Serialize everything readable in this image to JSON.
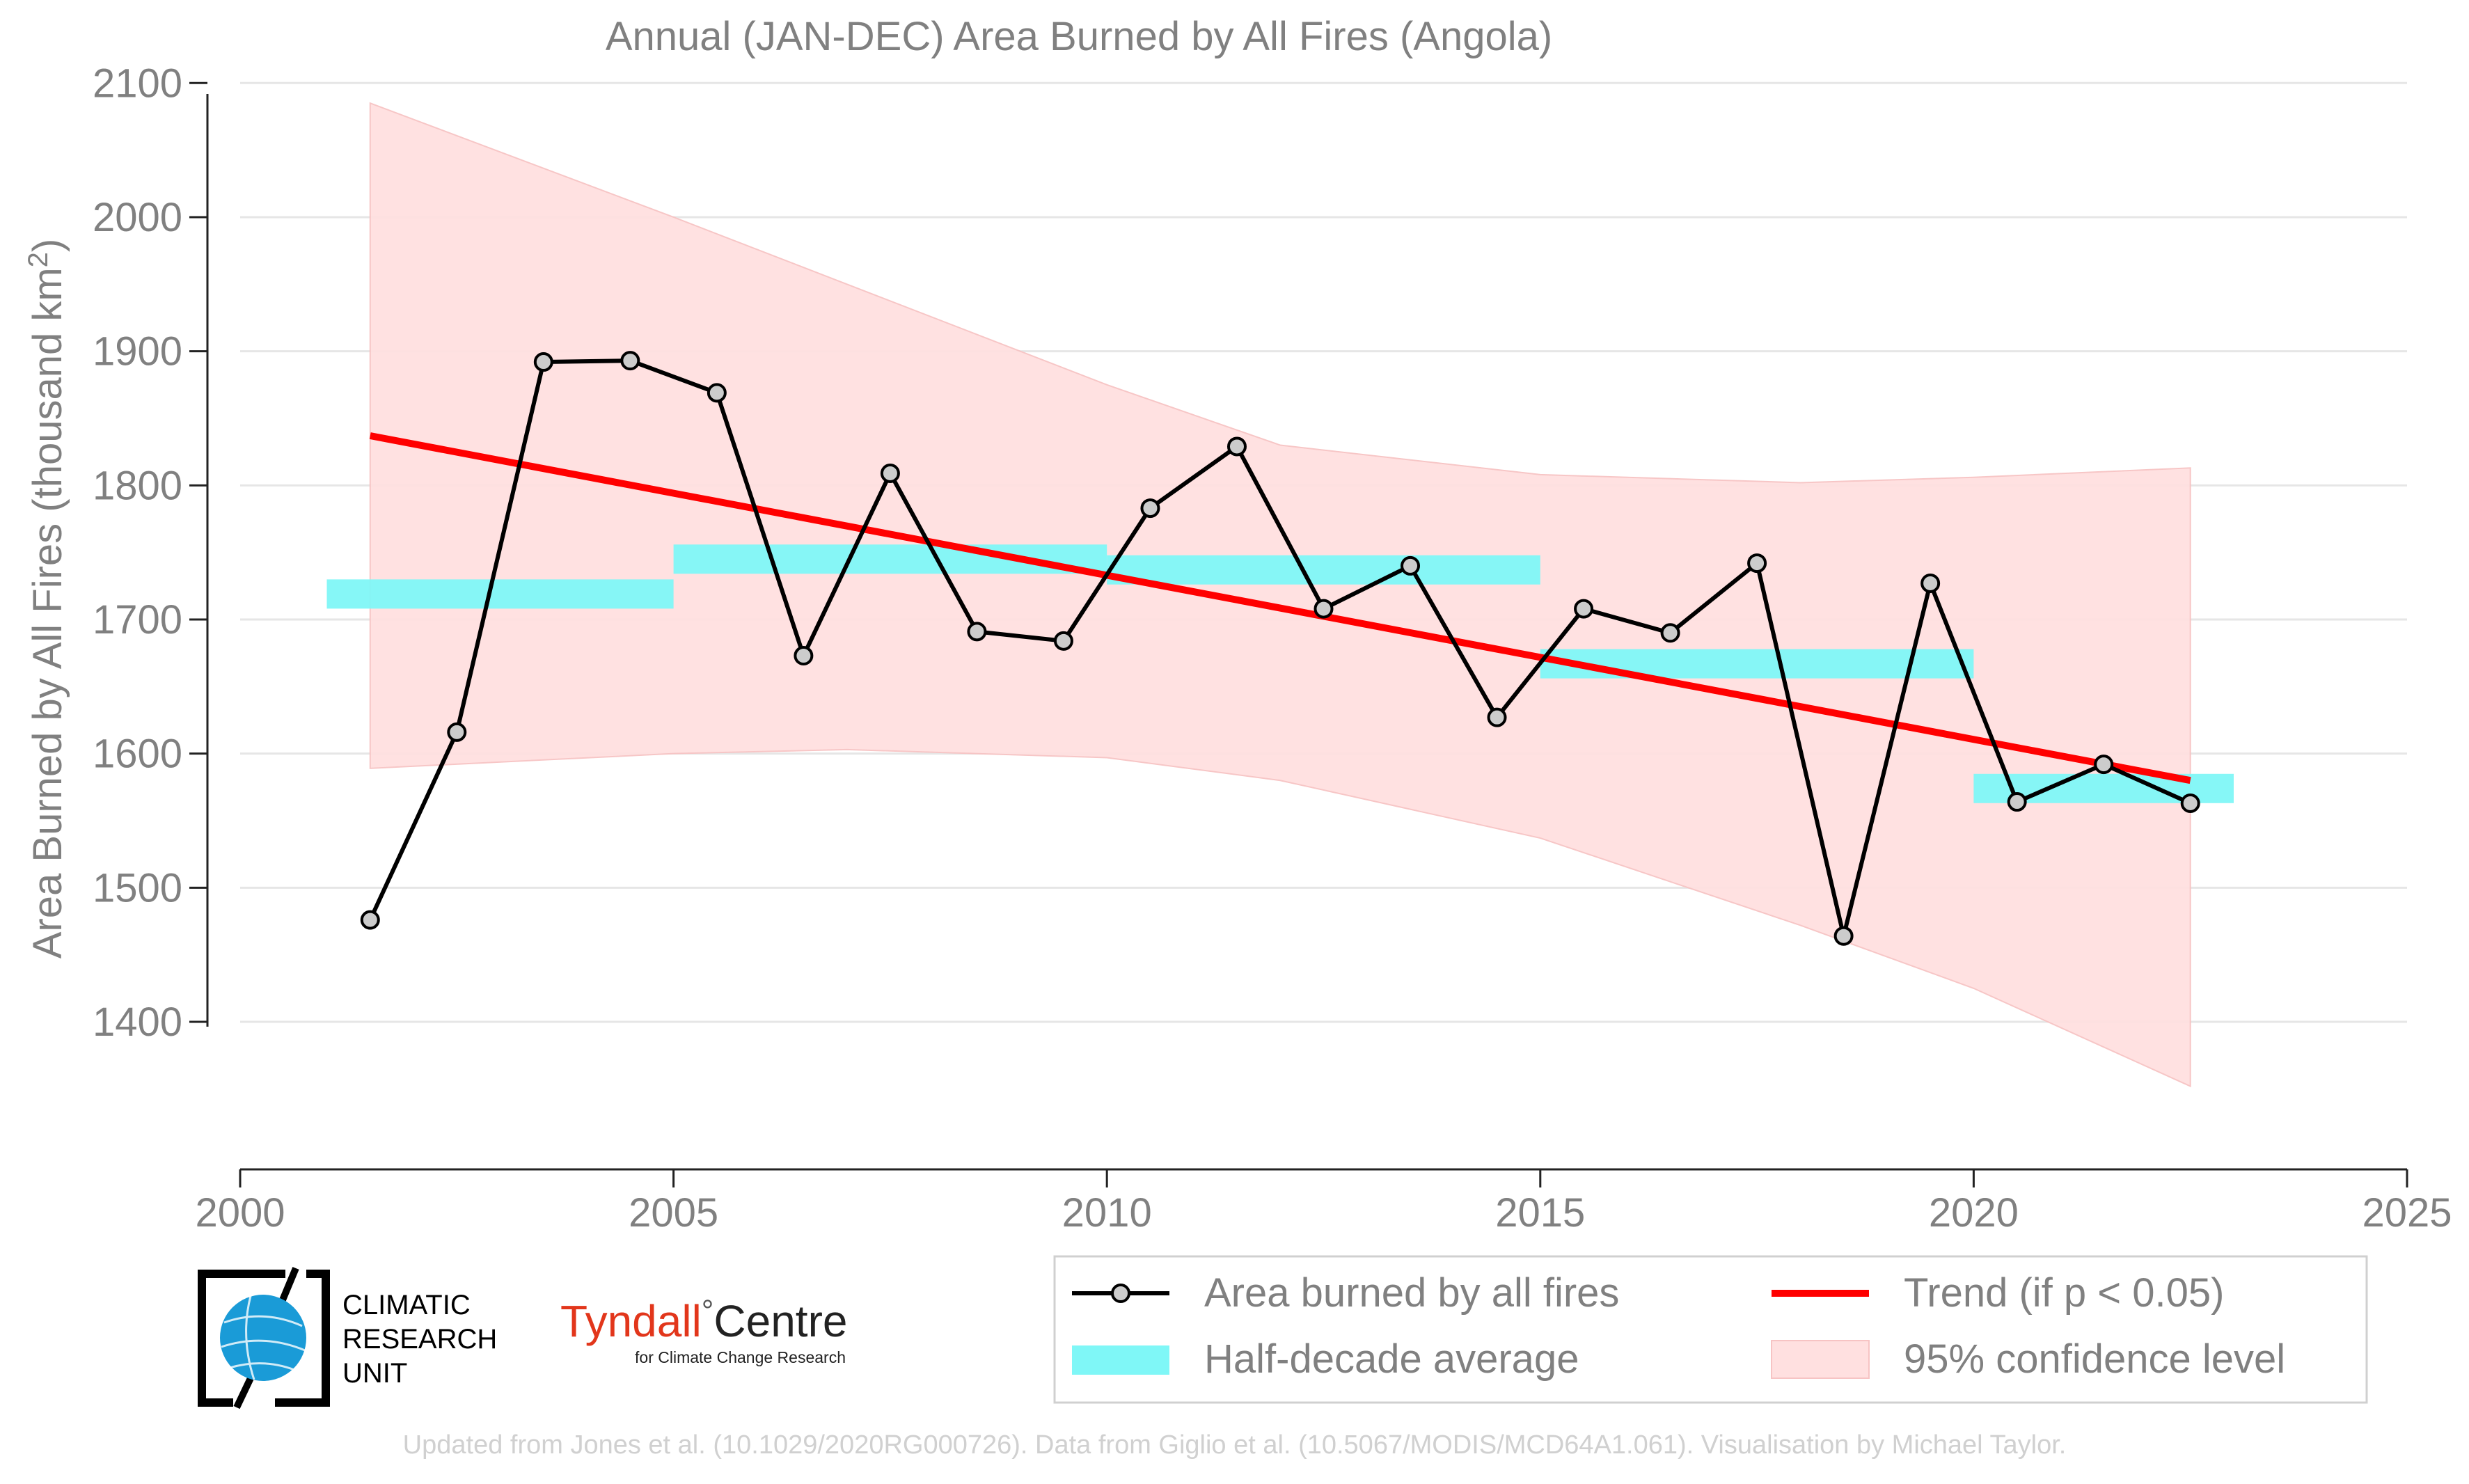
{
  "chart_data": {
    "type": "line",
    "title": "Annual (JAN-DEC) Area Burned by All Fires (Angola)",
    "ylabel": "Area Burned by All Fires (thousand km",
    "ylabel_sup": "2",
    "ylabel_close": ")",
    "xlabel": "",
    "xlim": [
      2000,
      2025
    ],
    "ylim": [
      1290,
      2110
    ],
    "x_ticks": [
      2000,
      2005,
      2010,
      2015,
      2020,
      2025
    ],
    "y_ticks": [
      1400,
      1500,
      1600,
      1700,
      1800,
      1900,
      2000,
      2100
    ],
    "grid": "horizontal",
    "series": [
      {
        "name": "Area burned by all fires",
        "color": "#000000",
        "x": [
          2001.5,
          2002.5,
          2003.5,
          2004.5,
          2005.5,
          2006.5,
          2007.5,
          2008.5,
          2009.5,
          2010.5,
          2011.5,
          2012.5,
          2013.5,
          2014.5,
          2015.5,
          2016.5,
          2017.5,
          2018.5,
          2019.5,
          2020.5,
          2021.5,
          2022.5
        ],
        "values": [
          1476,
          1616,
          1892,
          1893,
          1869,
          1673,
          1809,
          1691,
          1684,
          1783,
          1829,
          1708,
          1740,
          1627,
          1708,
          1690,
          1742,
          1464,
          1727,
          1564,
          1592,
          1563
        ]
      },
      {
        "name": "Half-decade average",
        "color": "#7ff7f7",
        "segments": [
          {
            "x0": 2001,
            "x1": 2005,
            "value": 1719
          },
          {
            "x0": 2005,
            "x1": 2010,
            "value": 1745
          },
          {
            "x0": 2010,
            "x1": 2015,
            "value": 1737
          },
          {
            "x0": 2015,
            "x1": 2020,
            "value": 1667
          },
          {
            "x0": 2020,
            "x1": 2023,
            "value": 1574
          }
        ]
      },
      {
        "name": "Trend (if p < 0.05)",
        "color": "#ff0000",
        "x": [
          2001.5,
          2022.5
        ],
        "values": [
          1837,
          1580
        ]
      },
      {
        "name": "95% confidence level",
        "color": "#ffe0e0",
        "x": [
          2001.5,
          2005,
          2007,
          2010,
          2012,
          2015,
          2018,
          2020,
          2022.5
        ],
        "upper": [
          2085,
          2000,
          1950,
          1875,
          1830,
          1808,
          1802,
          1806,
          1813
        ],
        "lower": [
          1589,
          1600,
          1603,
          1597,
          1580,
          1537,
          1472,
          1425,
          1352
        ]
      }
    ],
    "legend_position": "bottom-right"
  },
  "branding": {
    "cru_lines": [
      "CLIMATIC",
      "RESEARCH",
      "UNIT"
    ],
    "tyndall_name": "Tyndall",
    "tyndall_deg": "°",
    "tyndall_centre": "Centre",
    "tyndall_sub": "for Climate Change Research"
  },
  "footer": "Updated from Jones et al. (10.1029/2020RG000726). Data from Giglio et al. (10.5067/MODIS/MCD64A1.061). Visualisation by Michael Taylor."
}
